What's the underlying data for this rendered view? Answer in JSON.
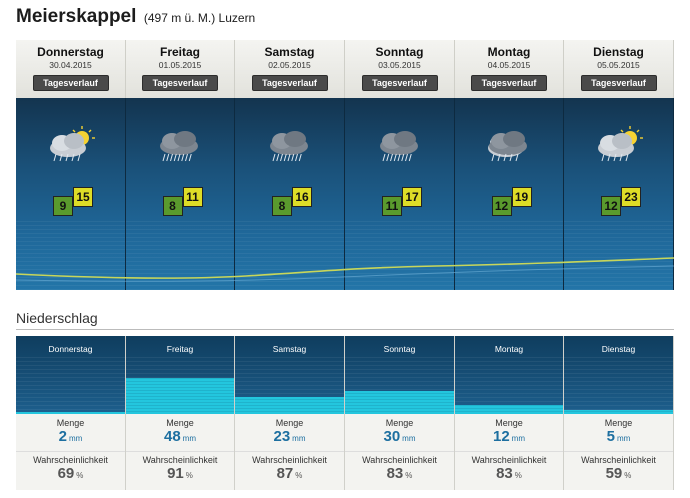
{
  "header": {
    "location": "Meierskappel",
    "altitude_region": "(497 m ü. M.) Luzern"
  },
  "forecast": {
    "button_label": "Tagesverlauf",
    "days": [
      {
        "name": "Donnerstag",
        "date": "30.04.2015",
        "icon": "partly-sunny-rain-icon",
        "tmin": "9",
        "tmax": "15"
      },
      {
        "name": "Freitag",
        "date": "01.05.2015",
        "icon": "heavy-rain-cloud-icon",
        "tmin": "8",
        "tmax": "11"
      },
      {
        "name": "Samstag",
        "date": "02.05.2015",
        "icon": "heavy-rain-cloud-icon",
        "tmin": "8",
        "tmax": "16"
      },
      {
        "name": "Sonntag",
        "date": "03.05.2015",
        "icon": "heavy-rain-cloud-icon",
        "tmin": "11",
        "tmax": "17"
      },
      {
        "name": "Montag",
        "date": "04.05.2015",
        "icon": "rain-cloud-icon",
        "tmin": "12",
        "tmax": "19"
      },
      {
        "name": "Dienstag",
        "date": "05.05.2015",
        "icon": "partly-sunny-rain-icon",
        "tmin": "12",
        "tmax": "23"
      }
    ]
  },
  "precipitation": {
    "section_title": "Niederschlag",
    "amount_label": "Menge",
    "amount_unit": "mm",
    "probability_label": "Wahrscheinlichkeit",
    "probability_unit": "%",
    "days": [
      {
        "name": "Donnerstag",
        "amount": "2",
        "probability": "69"
      },
      {
        "name": "Freitag",
        "amount": "48",
        "probability": "91"
      },
      {
        "name": "Samstag",
        "amount": "23",
        "probability": "87"
      },
      {
        "name": "Sonntag",
        "amount": "30",
        "probability": "83"
      },
      {
        "name": "Montag",
        "amount": "12",
        "probability": "83"
      },
      {
        "name": "Dienstag",
        "amount": "5",
        "probability": "59"
      }
    ]
  },
  "colors": {
    "tmin_box": "#5a9a2d",
    "tmax_box": "#dedd27",
    "precip_fill": "#23c6de",
    "value_blue": "#1d6fa0"
  }
}
